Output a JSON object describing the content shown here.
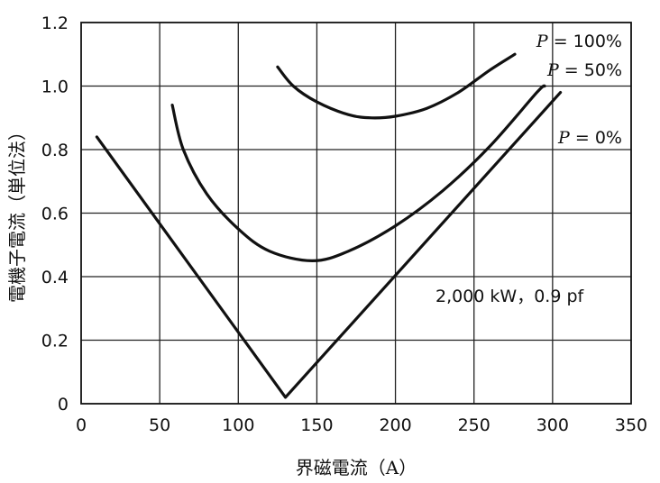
{
  "chart_data": {
    "type": "line",
    "title": "",
    "xlabel": "界磁電流（A）",
    "ylabel": "電機子電流（単位法）",
    "xlim": [
      0,
      350
    ],
    "ylim": [
      0,
      1.2
    ],
    "x_ticks": [
      "0",
      "50",
      "100",
      "150",
      "200",
      "250",
      "300",
      "350"
    ],
    "y_ticks": [
      "0",
      "0.2",
      "0.4",
      "0.6",
      "0.8",
      "1.0",
      "1.2"
    ],
    "grid": true,
    "legend": "none",
    "annotation": "2,000 kW，0.9 pf",
    "series": [
      {
        "name": "P = 100%",
        "points": [
          [
            125,
            1.06
          ],
          [
            135,
            1.0
          ],
          [
            150,
            0.95
          ],
          [
            170,
            0.91
          ],
          [
            185,
            0.9
          ],
          [
            200,
            0.905
          ],
          [
            220,
            0.93
          ],
          [
            240,
            0.98
          ],
          [
            260,
            1.05
          ],
          [
            276,
            1.1
          ]
        ]
      },
      {
        "name": "P = 50%",
        "points": [
          [
            58,
            0.94
          ],
          [
            65,
            0.8
          ],
          [
            80,
            0.66
          ],
          [
            100,
            0.55
          ],
          [
            120,
            0.48
          ],
          [
            147,
            0.45
          ],
          [
            170,
            0.48
          ],
          [
            200,
            0.56
          ],
          [
            230,
            0.67
          ],
          [
            260,
            0.81
          ],
          [
            290,
            0.98
          ],
          [
            295,
            1.0
          ]
        ]
      },
      {
        "name": "P = 0%",
        "points": [
          [
            10,
            0.84
          ],
          [
            130,
            0.02
          ],
          [
            305,
            0.98
          ]
        ]
      }
    ]
  }
}
